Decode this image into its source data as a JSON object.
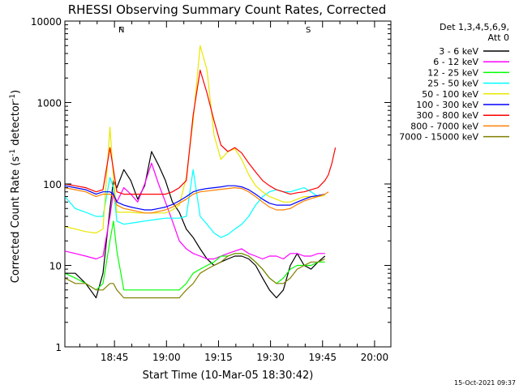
{
  "chart_data": {
    "type": "line",
    "title": "RHESSI Observing Summary Count Rates, Corrected",
    "xlabel": "Start Time (10-Mar-05 18:30:42)",
    "ylabel_parts": [
      "Corrected Count Rate (s",
      "-1",
      " detector",
      "-1",
      ")"
    ],
    "y_scale": "log",
    "ylim": [
      1,
      10000
    ],
    "y_ticks": [
      {
        "value": 1,
        "label": "1"
      },
      {
        "value": 10,
        "label": "10"
      },
      {
        "value": 100,
        "label": "100"
      },
      {
        "value": 1000,
        "label": "1000"
      },
      {
        "value": 10000,
        "label": "10000"
      }
    ],
    "xlim_min": [
      0,
      94
    ],
    "x_ticks": [
      {
        "min": 14.3,
        "label": "18:45"
      },
      {
        "min": 29.3,
        "label": "19:00"
      },
      {
        "min": 44.3,
        "label": "19:15"
      },
      {
        "min": 59.3,
        "label": "19:30"
      },
      {
        "min": 74.3,
        "label": "19:45"
      },
      {
        "min": 89.3,
        "label": "20:00"
      }
    ],
    "legend_placement": "right",
    "legend_header": [
      "Det 1,3,4,5,6,9,",
      "Att 0"
    ],
    "footer": "15-Oct-2021 09:37",
    "series": [
      {
        "name": "3 - 6 keV",
        "color": "#000000",
        "x": [
          0,
          3,
          6,
          9,
          11,
          13,
          14,
          15,
          17,
          19,
          21,
          23,
          25,
          27,
          29,
          31,
          33,
          35,
          37,
          39,
          41,
          43,
          45,
          47,
          49,
          51,
          53,
          55,
          57,
          59,
          61,
          63,
          65,
          67,
          69,
          71,
          73,
          75
        ],
        "y": [
          8,
          8,
          6,
          4,
          8,
          50,
          110,
          90,
          150,
          110,
          65,
          95,
          250,
          170,
          110,
          60,
          45,
          28,
          22,
          16,
          12,
          10,
          11,
          12,
          13,
          13,
          12,
          10,
          7,
          5,
          4,
          5,
          10,
          14,
          10,
          9,
          11,
          13
        ]
      },
      {
        "name": "6 - 12 keV",
        "color": "#ff00ff",
        "x": [
          0,
          3,
          6,
          9,
          11,
          13,
          14,
          15,
          17,
          19,
          21,
          23,
          25,
          27,
          29,
          31,
          33,
          35,
          37,
          39,
          41,
          43,
          45,
          47,
          49,
          51,
          53,
          55,
          57,
          59,
          61,
          63,
          65,
          67,
          69,
          71,
          73,
          75
        ],
        "y": [
          15,
          14,
          13,
          12,
          13,
          40,
          80,
          60,
          90,
          75,
          60,
          100,
          180,
          100,
          60,
          35,
          20,
          16,
          14,
          13,
          12,
          12,
          13,
          14,
          15,
          16,
          14,
          13,
          12,
          13,
          13,
          12,
          14,
          14,
          13,
          13,
          14,
          14
        ]
      },
      {
        "name": "12 - 25 keV",
        "color": "#00ff00",
        "x": [
          0,
          3,
          6,
          9,
          11,
          13,
          14,
          15,
          17,
          19,
          21,
          23,
          25,
          27,
          29,
          31,
          33,
          35,
          37,
          39,
          41,
          43,
          45,
          47,
          49,
          51,
          53,
          55,
          57,
          59,
          61,
          63,
          65,
          67,
          69,
          71,
          73,
          75
        ],
        "y": [
          8,
          7,
          6,
          5,
          6,
          20,
          35,
          15,
          5,
          5,
          5,
          5,
          5,
          5,
          5,
          5,
          5,
          6,
          8,
          9,
          10,
          11,
          13,
          13,
          14,
          14,
          13,
          11,
          9,
          7,
          6,
          7,
          9,
          10,
          10,
          10,
          11,
          11
        ]
      },
      {
        "name": "25 - 50 keV",
        "color": "#00ffff",
        "x": [
          0,
          3,
          6,
          9,
          11,
          13,
          14,
          15,
          17,
          19,
          21,
          23,
          25,
          27,
          29,
          31,
          33,
          35,
          37,
          39,
          41,
          43,
          45,
          47,
          49,
          51,
          53,
          55,
          57,
          59,
          61,
          63,
          65,
          67,
          69,
          71,
          73,
          75
        ],
        "y": [
          70,
          50,
          45,
          40,
          40,
          120,
          90,
          35,
          32,
          33,
          34,
          35,
          36,
          37,
          38,
          38,
          38,
          40,
          150,
          40,
          32,
          25,
          22,
          24,
          28,
          32,
          40,
          55,
          70,
          80,
          85,
          80,
          80,
          85,
          90,
          80,
          70,
          75
        ]
      },
      {
        "name": "50 - 100 keV",
        "color": "#e8e800",
        "x": [
          0,
          3,
          6,
          9,
          11,
          13,
          14,
          15,
          17,
          19,
          21,
          23,
          25,
          27,
          29,
          31,
          33,
          35,
          37,
          39,
          41,
          43,
          45,
          47,
          49,
          51,
          53,
          55,
          57,
          59,
          61,
          63,
          65,
          67,
          69,
          71,
          73,
          75
        ],
        "y": [
          30,
          28,
          26,
          25,
          28,
          500,
          120,
          45,
          45,
          45,
          44,
          44,
          44,
          44,
          44,
          48,
          55,
          120,
          600,
          5000,
          2500,
          400,
          200,
          250,
          270,
          200,
          130,
          95,
          80,
          70,
          65,
          60,
          60,
          65,
          70,
          70,
          70,
          72
        ]
      },
      {
        "name": "100 - 300 keV",
        "color": "#0000ff",
        "x": [
          0,
          3,
          6,
          9,
          11,
          13,
          14,
          15,
          17,
          19,
          21,
          23,
          25,
          27,
          29,
          31,
          33,
          35,
          37,
          39,
          41,
          43,
          45,
          47,
          49,
          51,
          53,
          55,
          57,
          59,
          61,
          63,
          65,
          67,
          69,
          71,
          73,
          75
        ],
        "y": [
          95,
          90,
          85,
          75,
          80,
          80,
          75,
          60,
          55,
          52,
          50,
          48,
          48,
          50,
          52,
          56,
          62,
          70,
          80,
          85,
          88,
          90,
          92,
          95,
          95,
          92,
          85,
          75,
          65,
          58,
          55,
          55,
          55,
          60,
          65,
          70,
          72,
          75
        ]
      },
      {
        "name": "300 - 800 keV",
        "color": "#ff0000",
        "x": [
          0,
          3,
          6,
          9,
          11,
          13,
          14,
          15,
          17,
          19,
          21,
          23,
          25,
          27,
          29,
          31,
          33,
          35,
          37,
          39,
          41,
          43,
          45,
          47,
          49,
          51,
          53,
          55,
          57,
          59,
          61,
          63,
          65,
          67,
          69,
          71,
          73,
          75,
          76,
          77,
          78
        ],
        "y": [
          100,
          95,
          90,
          80,
          85,
          280,
          150,
          80,
          75,
          75,
          75,
          75,
          75,
          75,
          75,
          80,
          90,
          110,
          700,
          2500,
          1300,
          600,
          300,
          250,
          280,
          240,
          180,
          140,
          110,
          95,
          85,
          80,
          75,
          78,
          80,
          85,
          90,
          110,
          130,
          180,
          280
        ]
      },
      {
        "name": "800 - 7000 keV",
        "color": "#ff8000",
        "x": [
          0,
          3,
          6,
          9,
          11,
          13,
          14,
          15,
          17,
          19,
          21,
          23,
          25,
          27,
          29,
          31,
          33,
          35,
          37,
          39,
          41,
          43,
          45,
          47,
          49,
          51,
          53,
          55,
          57,
          59,
          61,
          63,
          65,
          67,
          69,
          71,
          73,
          75,
          76
        ],
        "y": [
          90,
          85,
          80,
          70,
          75,
          75,
          70,
          55,
          50,
          48,
          46,
          44,
          44,
          46,
          48,
          52,
          58,
          65,
          75,
          80,
          82,
          84,
          86,
          88,
          90,
          88,
          80,
          70,
          60,
          52,
          48,
          48,
          50,
          56,
          62,
          66,
          70,
          75,
          80
        ]
      },
      {
        "name": "7000 - 15000 keV",
        "color": "#808000",
        "x": [
          0,
          3,
          6,
          9,
          11,
          13,
          14,
          15,
          17,
          19,
          21,
          23,
          25,
          27,
          29,
          31,
          33,
          35,
          37,
          39,
          41,
          43,
          45,
          47,
          49,
          51,
          53,
          55,
          57,
          59,
          61,
          63,
          65,
          67,
          69,
          71,
          73,
          75
        ],
        "y": [
          7,
          6,
          6,
          5,
          5,
          6,
          6,
          5,
          4,
          4,
          4,
          4,
          4,
          4,
          4,
          4,
          4,
          5,
          6,
          8,
          9,
          10,
          11,
          13,
          14,
          14,
          13,
          11,
          9,
          7,
          6,
          6,
          7,
          9,
          10,
          11,
          11,
          12
        ]
      }
    ],
    "annotations": [
      {
        "text": "N",
        "color": "#00c0ff",
        "at_min": 14.5
      },
      {
        "text": "F",
        "color": "#ff0000",
        "at_min": 14.5
      },
      {
        "text": "S",
        "color": "#ff8000",
        "at_min": 68.5
      }
    ]
  }
}
